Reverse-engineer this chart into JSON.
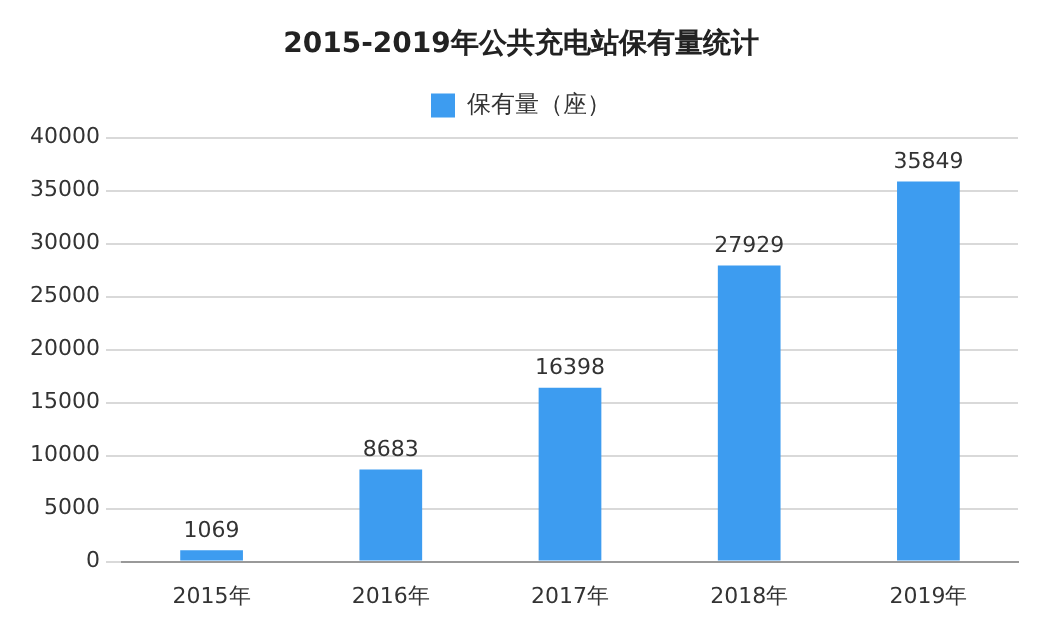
{
  "chart_data": {
    "type": "bar",
    "title": "2015-2019年公共充电站保有量统计",
    "categories": [
      "2015年",
      "2016年",
      "2017年",
      "2018年",
      "2019年"
    ],
    "series": [
      {
        "name": "保有量（座）",
        "color": "#3d9cf0",
        "values": [
          1069,
          8683,
          16398,
          27929,
          35849
        ]
      }
    ],
    "ylim": [
      0,
      40000
    ],
    "yticks": [
      0,
      5000,
      10000,
      15000,
      20000,
      25000,
      30000,
      35000,
      40000
    ],
    "grid": "y",
    "legend": "top",
    "data_labels": true
  }
}
